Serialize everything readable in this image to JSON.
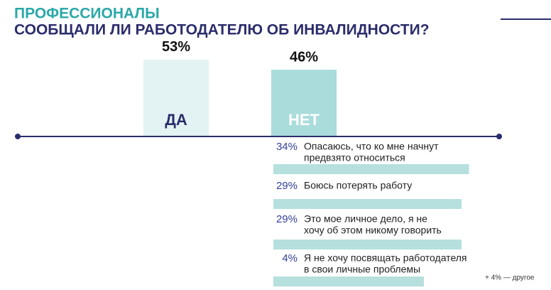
{
  "chart_data": {
    "type": "bar",
    "title": "ПРОФЕССИОНАЛЫ",
    "subtitle": "СООБЩАЛИ ЛИ РАБОТОДАТЕЛЮ ОБ ИНВАЛИДНОСТИ?",
    "categories": [
      "ДА",
      "НЕТ"
    ],
    "values": [
      53,
      46
    ],
    "value_labels": [
      "53%",
      "46%"
    ],
    "colors": [
      "#e3f2f2",
      "#a9dcdb"
    ],
    "reasons": {
      "values": [
        34,
        29,
        29,
        4
      ],
      "value_labels": [
        "34%",
        "29%",
        "29%",
        "4%"
      ],
      "labels": [
        [
          "Опасаюсь, что ко мне начнут",
          "предвзято относиться"
        ],
        [
          "Боюсь потерять работу"
        ],
        [
          "Это мое личное дело, я не",
          "хочу об этом никому говорить"
        ],
        [
          "Я не хочу посвящать работодателя",
          "в свои личные проблемы"
        ]
      ],
      "color": "#b5e0de"
    },
    "note": "+ 4% — другое"
  }
}
